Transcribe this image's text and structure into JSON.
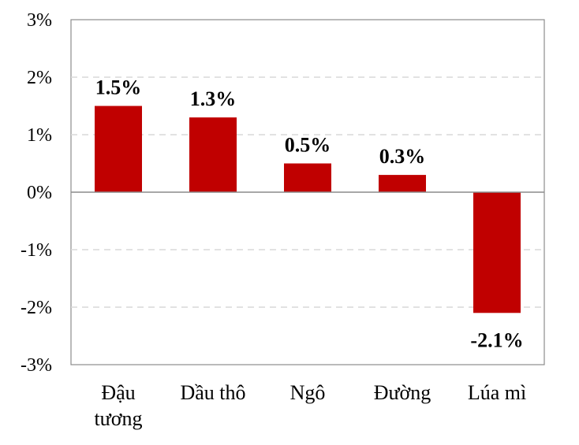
{
  "chart_data": {
    "type": "bar",
    "categories": [
      [
        "Đậu",
        "tương"
      ],
      [
        "Dầu thô"
      ],
      [
        "Ngô"
      ],
      [
        "Đường"
      ],
      [
        "Lúa mì"
      ]
    ],
    "values": [
      1.5,
      1.3,
      0.5,
      0.3,
      -2.1
    ],
    "data_labels": [
      "1.5%",
      "1.3%",
      "0.5%",
      "0.3%",
      "-2.1%"
    ],
    "ylim": [
      -3,
      3
    ],
    "yticks": [
      3,
      2,
      1,
      0,
      -1,
      -2,
      -3
    ],
    "ytick_labels": [
      "3%",
      "2%",
      "1%",
      "0%",
      "-1%",
      "-2%",
      "-3%"
    ],
    "grid": true,
    "bar_color": "#c00000",
    "title": "",
    "xlabel": "",
    "ylabel": ""
  }
}
